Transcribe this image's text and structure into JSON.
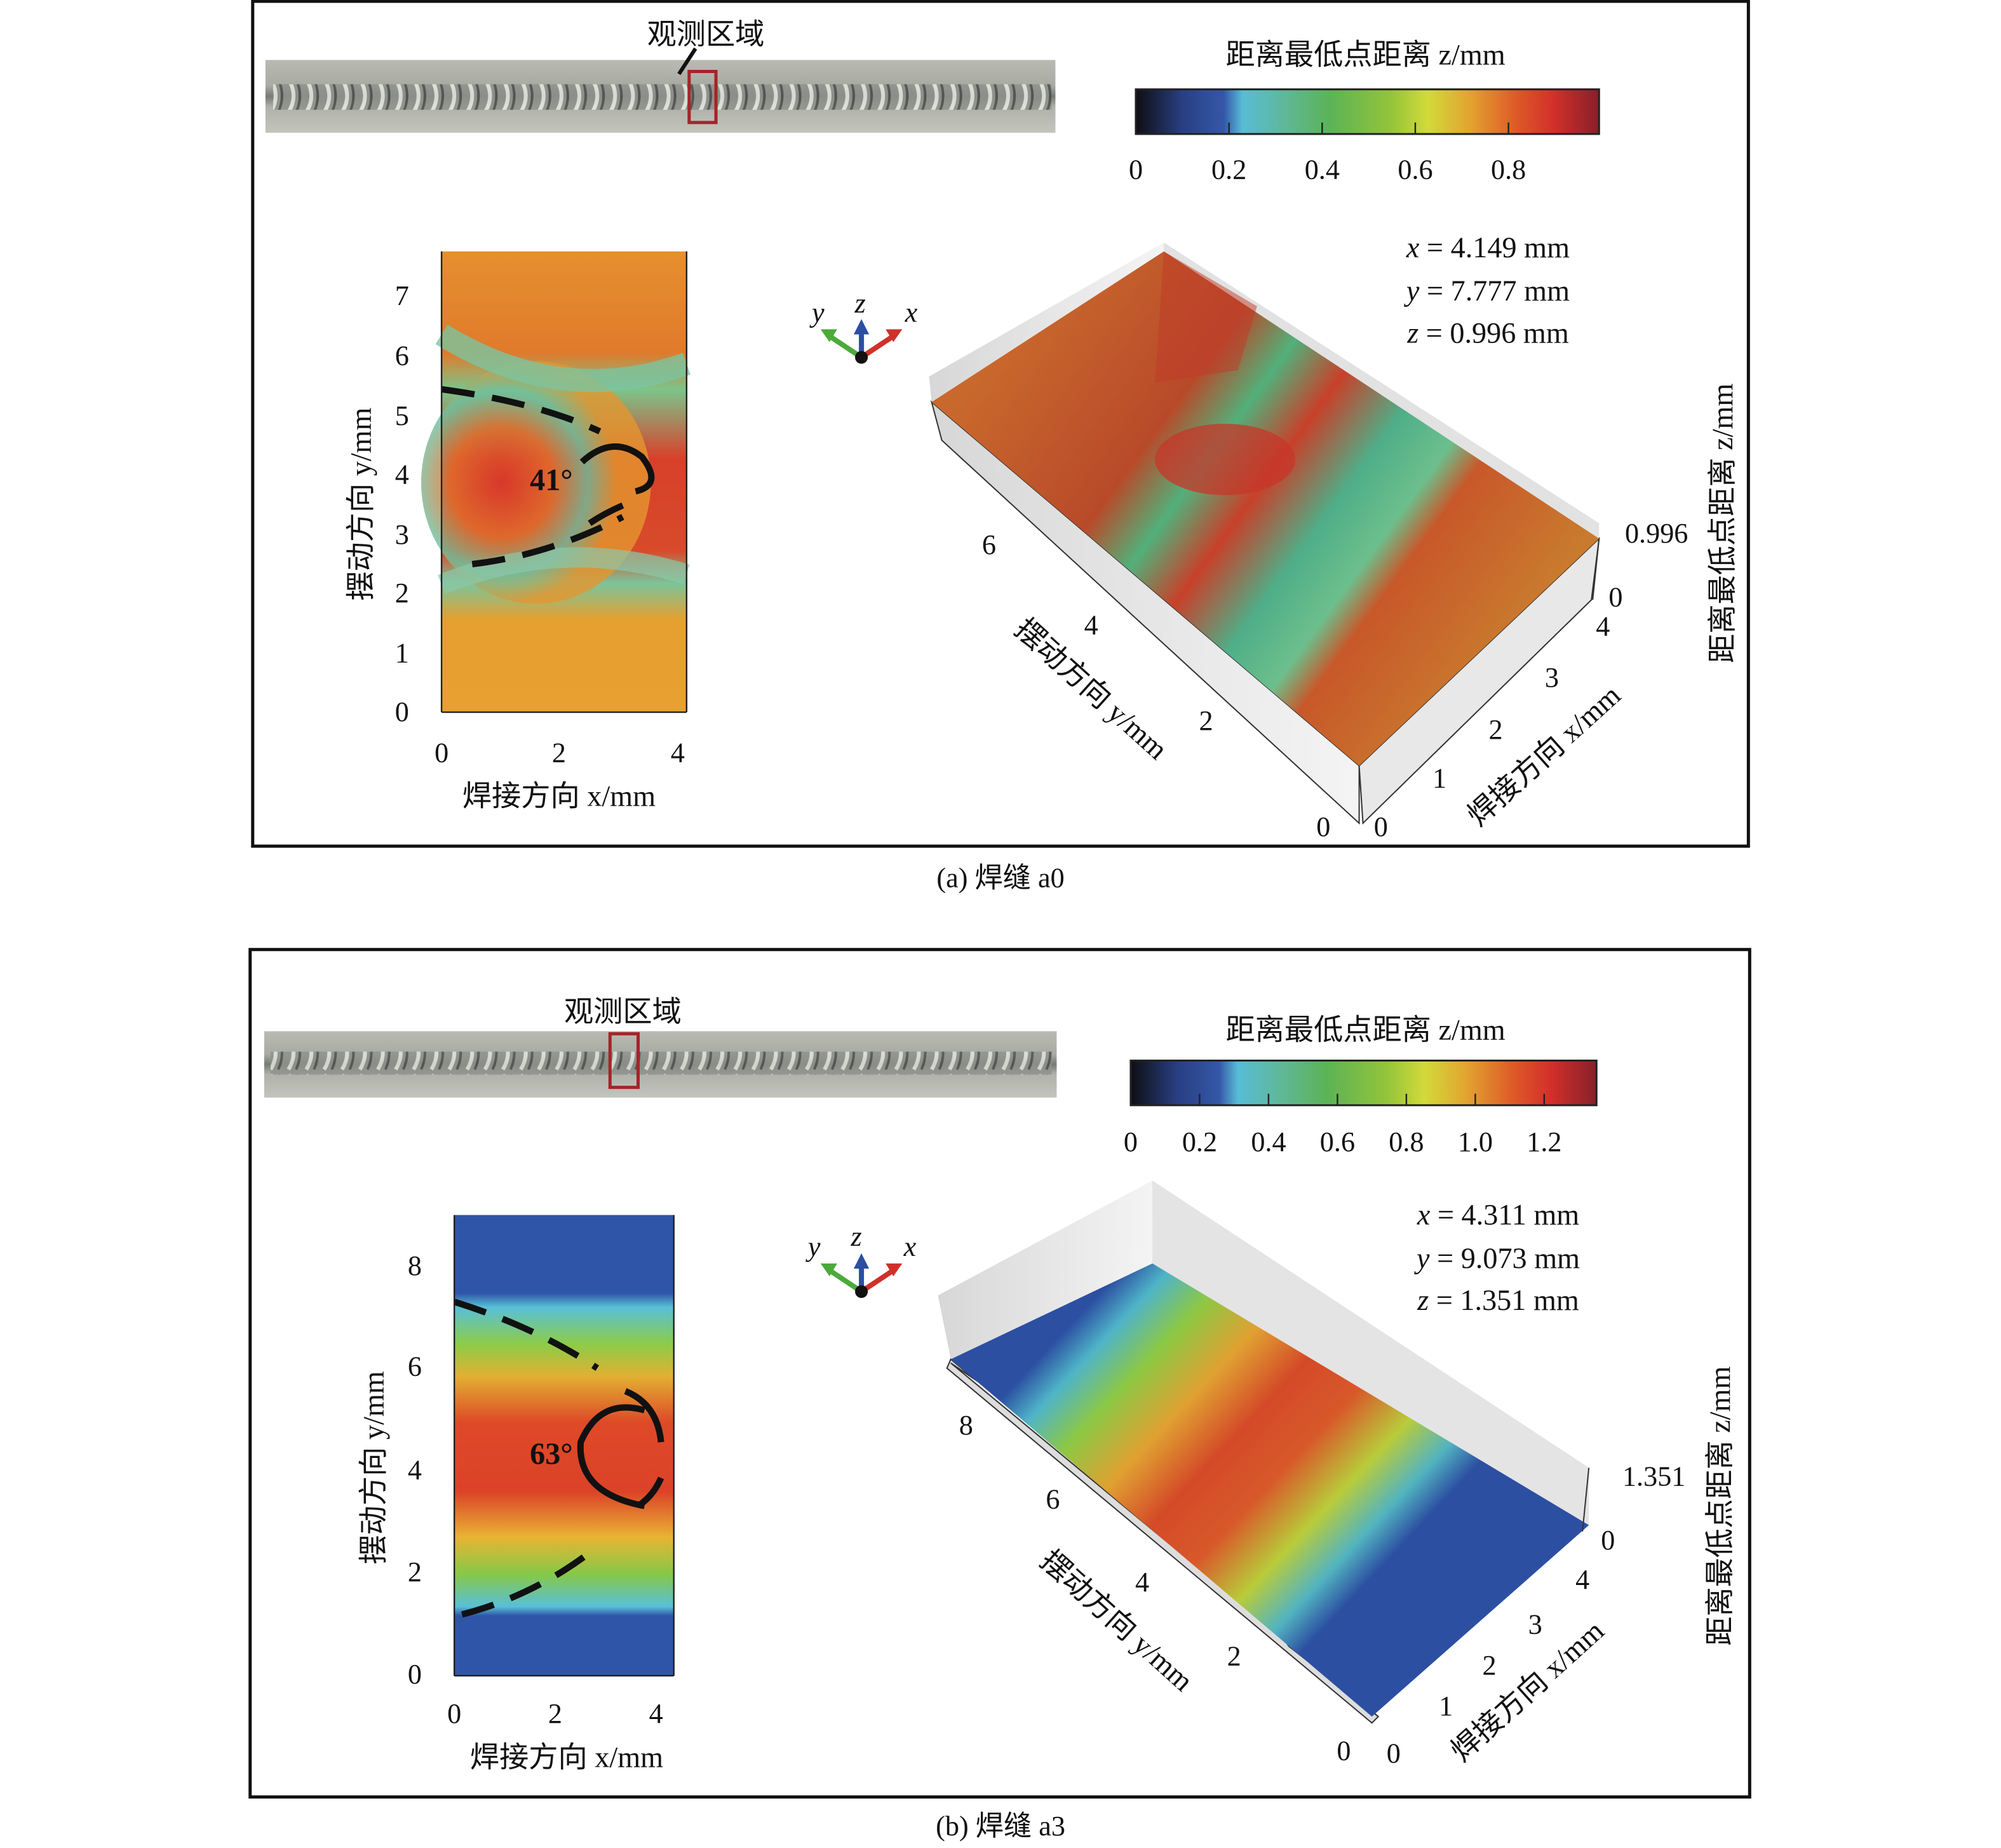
{
  "panels": [
    {
      "caption": "(a) 焊缝 a0",
      "region_label": "观测区域",
      "colorbar": {
        "title": "距离最低点距离 z/mm",
        "ticks": [
          "0",
          "0.2",
          "0.4",
          "0.6",
          "0.8"
        ],
        "range": [
          0,
          0.996
        ]
      },
      "map2d": {
        "xlabel": "焊接方向 x/mm",
        "ylabel": "摆动方向 y/mm",
        "xticks": [
          "0",
          "2",
          "4"
        ],
        "yticks": [
          "0",
          "1",
          "2",
          "3",
          "4",
          "5",
          "6",
          "7"
        ],
        "angle": "41°"
      },
      "triad": {
        "x": "x",
        "y": "y",
        "z": "z"
      },
      "readout": [
        {
          "var": "x",
          "value": "= 4.149 mm"
        },
        {
          "var": "y",
          "value": "= 7.777 mm"
        },
        {
          "var": "z",
          "value": "= 0.996 mm"
        }
      ],
      "surface3d": {
        "yticks": [
          "6",
          "4",
          "2",
          "0"
        ],
        "xticks": [
          "0",
          "1",
          "2",
          "3",
          "4"
        ],
        "zticks": [
          "0.996",
          "0"
        ],
        "xlabel": "焊接方向 x/mm",
        "ylabel": "摆动方向 y/mm",
        "zlabel": "距离最低点距离 z/mm"
      }
    },
    {
      "caption": "(b) 焊缝 a3",
      "region_label": "观测区域",
      "colorbar": {
        "title": "距离最低点距离 z/mm",
        "ticks": [
          "0",
          "0.2",
          "0.4",
          "0.6",
          "0.8",
          "1.0",
          "1.2"
        ],
        "range": [
          0,
          1.351
        ]
      },
      "map2d": {
        "xlabel": "焊接方向 x/mm",
        "ylabel": "摆动方向 y/mm",
        "xticks": [
          "0",
          "2",
          "4"
        ],
        "yticks": [
          "0",
          "2",
          "4",
          "6",
          "8"
        ],
        "angle": "63°"
      },
      "triad": {
        "x": "x",
        "y": "y",
        "z": "z"
      },
      "readout": [
        {
          "var": "x",
          "value": "= 4.311 mm"
        },
        {
          "var": "y",
          "value": "= 9.073 mm"
        },
        {
          "var": "z",
          "value": "= 1.351 mm"
        }
      ],
      "surface3d": {
        "yticks": [
          "8",
          "6",
          "4",
          "2",
          "0"
        ],
        "xticks": [
          "0",
          "1",
          "2",
          "3",
          "4"
        ],
        "zticks": [
          "1.351",
          "0"
        ],
        "xlabel": "焊接方向 x/mm",
        "ylabel": "摆动方向 y/mm",
        "zlabel": "距离最低点距离 z/mm"
      }
    }
  ],
  "colors": {
    "frame": "#111111",
    "roi_box": "#a82228"
  }
}
